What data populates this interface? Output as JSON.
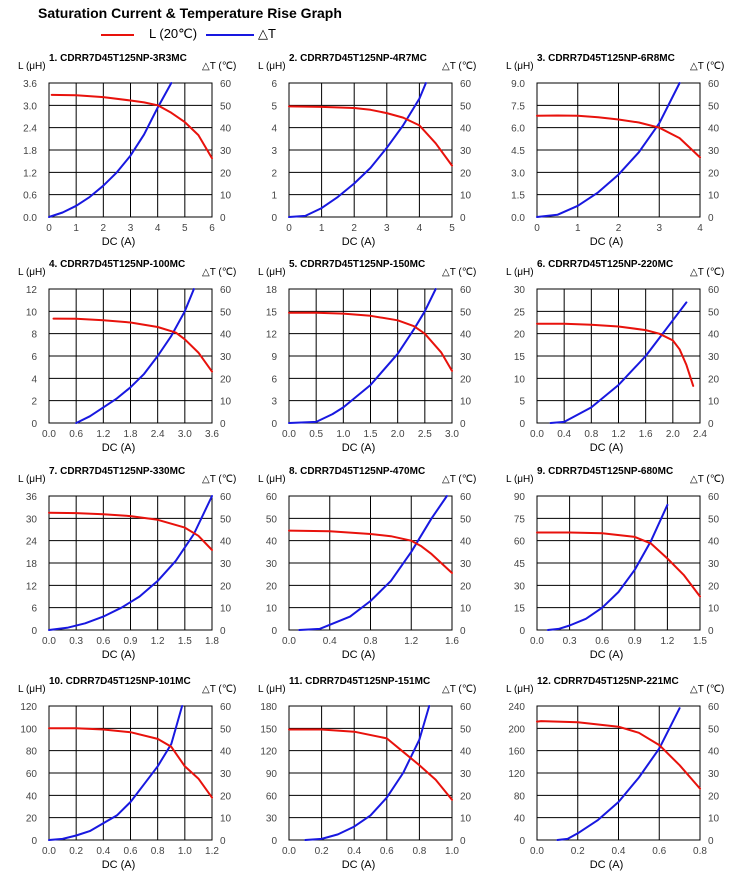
{
  "page": {
    "title": "Saturation Current & Temperature Rise  Graph",
    "legend": [
      {
        "label": "L (20℃)",
        "color": "#e8120c"
      },
      {
        "label": "△T",
        "color": "#1818e0"
      }
    ],
    "left_axis_label": "L (μH)",
    "right_axis_label": "△T (℃)",
    "x_axis_label": "DC (A)"
  },
  "chart_data": [
    {
      "type": "line",
      "title": "1. CDRR7D45T125NP-3R3MC",
      "xlabel": "DC (A)",
      "ylabel": "L (μH)",
      "y2label": "△T (℃)",
      "xlim": [
        0,
        6
      ],
      "ylim": [
        0,
        3.6
      ],
      "y2lim": [
        0,
        60
      ],
      "xticks": [
        "0",
        "1",
        "2",
        "3",
        "4",
        "5",
        "6"
      ],
      "yticks": [
        "0.0",
        "0.6",
        "1.2",
        "1.8",
        "2.4",
        "3.0",
        "3.6"
      ],
      "y2ticks": [
        "0",
        "10",
        "20",
        "30",
        "40",
        "50",
        "60"
      ],
      "grid": true,
      "series": [
        {
          "name": "L (20℃)",
          "axis": "left",
          "color": "#e8120c",
          "x": [
            0.1,
            1,
            2,
            3,
            3.5,
            4,
            4.5,
            5,
            5.5,
            6
          ],
          "y": [
            3.28,
            3.27,
            3.22,
            3.13,
            3.08,
            3.0,
            2.8,
            2.55,
            2.2,
            1.58
          ]
        },
        {
          "name": "△T",
          "axis": "right",
          "color": "#1818e0",
          "x": [
            0,
            0.5,
            1,
            1.5,
            2,
            2.5,
            3,
            3.5,
            4,
            4.5
          ],
          "y": [
            0,
            2,
            5,
            9,
            14,
            20,
            27.5,
            37,
            49,
            60
          ]
        }
      ]
    },
    {
      "type": "line",
      "title": "2. CDRR7D45T125NP-4R7MC",
      "xlabel": "DC (A)",
      "ylabel": "L (μH)",
      "y2label": "△T (℃)",
      "xlim": [
        0,
        5
      ],
      "ylim": [
        0,
        6
      ],
      "y2lim": [
        0,
        60
      ],
      "xticks": [
        "0",
        "1",
        "2",
        "3",
        "4",
        "5"
      ],
      "yticks": [
        "0",
        "1",
        "2",
        "3",
        "4",
        "5",
        "6"
      ],
      "y2ticks": [
        "0",
        "10",
        "20",
        "30",
        "40",
        "50",
        "60"
      ],
      "grid": true,
      "series": [
        {
          "name": "L (20℃)",
          "axis": "left",
          "color": "#e8120c",
          "x": [
            0,
            1,
            2,
            2.5,
            3,
            3.5,
            4,
            4.5,
            5
          ],
          "y": [
            4.95,
            4.93,
            4.88,
            4.8,
            4.65,
            4.45,
            4.1,
            3.3,
            2.3
          ]
        },
        {
          "name": "△T",
          "axis": "right",
          "color": "#1818e0",
          "x": [
            0,
            0.5,
            1,
            1.5,
            2,
            2.5,
            3,
            3.5,
            4,
            4.2
          ],
          "y": [
            0,
            0.5,
            4,
            9,
            15,
            22,
            31,
            41,
            53,
            60
          ]
        }
      ]
    },
    {
      "type": "line",
      "title": "3. CDRR7D45T125NP-6R8MC",
      "xlabel": "DC (A)",
      "ylabel": "L (μH)",
      "y2label": "△T (℃)",
      "xlim": [
        0,
        4
      ],
      "ylim": [
        0,
        9
      ],
      "y2lim": [
        0,
        60
      ],
      "xticks": [
        "0",
        "1",
        "2",
        "3",
        "4"
      ],
      "yticks": [
        "0.0",
        "1.5",
        "3.0",
        "4.5",
        "6.0",
        "7.5",
        "9.0"
      ],
      "y2ticks": [
        "0",
        "10",
        "20",
        "30",
        "40",
        "50",
        "60"
      ],
      "grid": true,
      "series": [
        {
          "name": "L (20℃)",
          "axis": "left",
          "color": "#e8120c",
          "x": [
            0,
            0.5,
            1,
            1.5,
            2,
            2.5,
            3,
            3.5,
            4
          ],
          "y": [
            6.8,
            6.82,
            6.8,
            6.7,
            6.55,
            6.35,
            6.0,
            5.3,
            4.0
          ]
        },
        {
          "name": "△T",
          "axis": "right",
          "color": "#1818e0",
          "x": [
            0,
            0.5,
            1,
            1.5,
            2,
            2.5,
            3,
            3.5
          ],
          "y": [
            0,
            1,
            5,
            11,
            19,
            29,
            42,
            60
          ]
        }
      ]
    },
    {
      "type": "line",
      "title": "4. CDRR7D45T125NP-100MC",
      "xlabel": "DC (A)",
      "ylabel": "L (μH)",
      "y2label": "△T (℃)",
      "xlim": [
        0,
        3.6
      ],
      "ylim": [
        0,
        12
      ],
      "y2lim": [
        0,
        60
      ],
      "xticks": [
        "0.0",
        "0.6",
        "1.2",
        "1.8",
        "2.4",
        "3.0",
        "3.6"
      ],
      "yticks": [
        "0",
        "2",
        "4",
        "6",
        "8",
        "10",
        "12"
      ],
      "y2ticks": [
        "0",
        "10",
        "20",
        "30",
        "40",
        "50",
        "60"
      ],
      "grid": true,
      "series": [
        {
          "name": "L (20℃)",
          "axis": "left",
          "color": "#e8120c",
          "x": [
            0.1,
            0.6,
            1.2,
            1.8,
            2.4,
            2.8,
            3.0,
            3.3,
            3.6
          ],
          "y": [
            9.35,
            9.33,
            9.2,
            9.0,
            8.6,
            8.1,
            7.5,
            6.3,
            4.6
          ]
        },
        {
          "name": "△T",
          "axis": "right",
          "color": "#1818e0",
          "x": [
            0.6,
            0.9,
            1.2,
            1.5,
            1.8,
            2.1,
            2.4,
            2.7,
            3.0,
            3.2
          ],
          "y": [
            0,
            3,
            7,
            11,
            16,
            22,
            30,
            39,
            50,
            60
          ]
        }
      ]
    },
    {
      "type": "line",
      "title": "5. CDRR7D45T125NP-150MC",
      "xlabel": "DC (A)",
      "ylabel": "L (μH)",
      "y2label": "△T (℃)",
      "xlim": [
        0,
        3
      ],
      "ylim": [
        0,
        18
      ],
      "y2lim": [
        0,
        60
      ],
      "xticks": [
        "0.0",
        "0.5",
        "1.0",
        "1.5",
        "2.0",
        "2.5",
        "3.0"
      ],
      "yticks": [
        "0",
        "3",
        "6",
        "9",
        "12",
        "15",
        "18"
      ],
      "y2ticks": [
        "0",
        "10",
        "20",
        "30",
        "40",
        "50",
        "60"
      ],
      "grid": true,
      "series": [
        {
          "name": "L (20℃)",
          "axis": "left",
          "color": "#e8120c",
          "x": [
            0,
            0.5,
            1,
            1.5,
            2,
            2.3,
            2.5,
            2.8,
            3
          ],
          "y": [
            14.8,
            14.8,
            14.7,
            14.4,
            13.8,
            13.0,
            12.0,
            9.5,
            7.0
          ]
        },
        {
          "name": "△T",
          "axis": "right",
          "color": "#1818e0",
          "x": [
            0,
            0.5,
            0.8,
            1.0,
            1.5,
            2.0,
            2.3,
            2.5,
            2.7
          ],
          "y": [
            0,
            0.5,
            4,
            7,
            17,
            31,
            42,
            50,
            60
          ]
        }
      ]
    },
    {
      "type": "line",
      "title": "6. CDRR7D45T125NP-220MC",
      "xlabel": "DC (A)",
      "ylabel": "L (μH)",
      "y2label": "△T (℃)",
      "xlim": [
        0,
        2.4
      ],
      "ylim": [
        0,
        30
      ],
      "y2lim": [
        0,
        60
      ],
      "xticks": [
        "0.0",
        "0.4",
        "0.8",
        "1.2",
        "1.6",
        "2.0",
        "2.4"
      ],
      "yticks": [
        "0",
        "5",
        "10",
        "15",
        "20",
        "25",
        "30"
      ],
      "y2ticks": [
        "0",
        "10",
        "20",
        "30",
        "40",
        "50",
        "60"
      ],
      "grid": true,
      "series": [
        {
          "name": "L (20℃)",
          "axis": "left",
          "color": "#e8120c",
          "x": [
            0,
            0.4,
            0.8,
            1.2,
            1.6,
            1.8,
            2.0,
            2.1,
            2.2,
            2.3
          ],
          "y": [
            22.2,
            22.2,
            22.0,
            21.6,
            20.8,
            20.0,
            18.5,
            16.5,
            13.0,
            8.3
          ]
        },
        {
          "name": "△T",
          "axis": "right",
          "color": "#1818e0",
          "x": [
            0.2,
            0.4,
            0.8,
            1.2,
            1.6,
            1.8,
            2.0,
            2.2
          ],
          "y": [
            0,
            0.5,
            7,
            17,
            30,
            38,
            46,
            54
          ]
        }
      ]
    },
    {
      "type": "line",
      "title": "7. CDRR7D45T125NP-330MC",
      "xlabel": "DC (A)",
      "ylabel": "L (μH)",
      "y2label": "△T (℃)",
      "xlim": [
        0,
        1.8
      ],
      "ylim": [
        0,
        36
      ],
      "y2lim": [
        0,
        60
      ],
      "xticks": [
        "0.0",
        "0.3",
        "0.6",
        "0.9",
        "1.2",
        "1.5",
        "1.8"
      ],
      "yticks": [
        "0",
        "6",
        "12",
        "18",
        "24",
        "30",
        "36"
      ],
      "y2ticks": [
        "0",
        "10",
        "20",
        "30",
        "40",
        "50",
        "60"
      ],
      "grid": true,
      "series": [
        {
          "name": "L (20℃)",
          "axis": "left",
          "color": "#e8120c",
          "x": [
            0,
            0.3,
            0.6,
            0.9,
            1.2,
            1.5,
            1.65,
            1.8
          ],
          "y": [
            31.5,
            31.4,
            31.1,
            30.6,
            29.6,
            27.5,
            25.3,
            21.5
          ]
        },
        {
          "name": "△T",
          "axis": "right",
          "color": "#1818e0",
          "x": [
            0,
            0.2,
            0.4,
            0.6,
            0.8,
            1.0,
            1.2,
            1.4,
            1.6,
            1.8
          ],
          "y": [
            0,
            1,
            3,
            6,
            10,
            15,
            22,
            31,
            43,
            60
          ]
        }
      ]
    },
    {
      "type": "line",
      "title": "8. CDRR7D45T125NP-470MC",
      "xlabel": "DC (A)",
      "ylabel": "L (μH)",
      "y2label": "△T (℃)",
      "xlim": [
        0,
        1.6
      ],
      "ylim": [
        0,
        60
      ],
      "y2lim": [
        0,
        60
      ],
      "xticks": [
        "0.0",
        "0.4",
        "0.8",
        "1.2",
        "1.6"
      ],
      "yticks": [
        "0",
        "10",
        "20",
        "30",
        "40",
        "50",
        "60"
      ],
      "y2ticks": [
        "0",
        "10",
        "20",
        "30",
        "40",
        "50",
        "60"
      ],
      "grid": true,
      "series": [
        {
          "name": "L (20℃)",
          "axis": "left",
          "color": "#e8120c",
          "x": [
            0,
            0.4,
            0.8,
            1.0,
            1.2,
            1.3,
            1.4,
            1.6
          ],
          "y": [
            44.5,
            44.2,
            43.0,
            42.0,
            40.0,
            37.5,
            34.0,
            25.5
          ]
        },
        {
          "name": "△T",
          "axis": "right",
          "color": "#1818e0",
          "x": [
            0.1,
            0.3,
            0.6,
            0.8,
            1.0,
            1.2,
            1.4,
            1.55
          ],
          "y": [
            0,
            0.5,
            6,
            13,
            22,
            35,
            50,
            60
          ]
        }
      ]
    },
    {
      "type": "line",
      "title": "9. CDRR7D45T125NP-680MC",
      "xlabel": "DC (A)",
      "ylabel": "L (μH)",
      "y2label": "△T (℃)",
      "xlim": [
        0,
        1.5
      ],
      "ylim": [
        0,
        90
      ],
      "y2lim": [
        0,
        60
      ],
      "xticks": [
        "0.0",
        "0.3",
        "0.6",
        "0.9",
        "1.2",
        "1.5"
      ],
      "yticks": [
        "0",
        "15",
        "30",
        "45",
        "60",
        "75",
        "90"
      ],
      "y2ticks": [
        "0",
        "10",
        "20",
        "30",
        "40",
        "50",
        "60"
      ],
      "grid": true,
      "series": [
        {
          "name": "L (20℃)",
          "axis": "left",
          "color": "#e8120c",
          "x": [
            0,
            0.3,
            0.6,
            0.9,
            1.05,
            1.2,
            1.35,
            1.5
          ],
          "y": [
            65.5,
            65.5,
            65.0,
            62.5,
            58.0,
            48.0,
            37.0,
            22.5
          ]
        },
        {
          "name": "△T",
          "axis": "right",
          "color": "#1818e0",
          "x": [
            0.1,
            0.2,
            0.3,
            0.45,
            0.6,
            0.75,
            0.9,
            1.05,
            1.2
          ],
          "y": [
            0,
            0.5,
            2,
            5,
            10,
            17,
            27,
            40,
            56
          ]
        }
      ]
    },
    {
      "type": "line",
      "title": "10. CDRR7D45T125NP-101MC",
      "xlabel": "DC (A)",
      "ylabel": "L (μH)",
      "y2label": "△T (℃)",
      "xlim": [
        0,
        1.2
      ],
      "ylim": [
        0,
        120
      ],
      "y2lim": [
        0,
        60
      ],
      "xticks": [
        "0.0",
        "0.2",
        "0.4",
        "0.6",
        "0.8",
        "1.0",
        "1.2"
      ],
      "yticks": [
        "0",
        "20",
        "40",
        "60",
        "80",
        "100",
        "120"
      ],
      "y2ticks": [
        "0",
        "10",
        "20",
        "30",
        "40",
        "50",
        "60"
      ],
      "grid": true,
      "series": [
        {
          "name": "L (20℃)",
          "axis": "left",
          "color": "#e8120c",
          "x": [
            0,
            0.2,
            0.4,
            0.6,
            0.8,
            0.9,
            1.0,
            1.1,
            1.2
          ],
          "y": [
            100,
            100,
            99,
            96.5,
            90.5,
            83.5,
            66.0,
            55.0,
            38.0
          ]
        },
        {
          "name": "△T",
          "axis": "right",
          "color": "#1818e0",
          "x": [
            0,
            0.1,
            0.2,
            0.3,
            0.4,
            0.5,
            0.6,
            0.7,
            0.8,
            0.9,
            0.98
          ],
          "y": [
            0,
            0.5,
            2,
            4,
            7.5,
            11,
            17,
            25,
            33,
            43,
            60
          ]
        }
      ]
    },
    {
      "type": "line",
      "title": "11. CDRR7D45T125NP-151MC",
      "xlabel": "DC (A)",
      "ylabel": "L (μH)",
      "y2label": "△T (℃)",
      "xlim": [
        0,
        1
      ],
      "ylim": [
        0,
        180
      ],
      "y2lim": [
        0,
        60
      ],
      "xticks": [
        "0.0",
        "0.2",
        "0.4",
        "0.6",
        "0.8",
        "1.0"
      ],
      "yticks": [
        "0",
        "30",
        "60",
        "90",
        "120",
        "150",
        "180"
      ],
      "y2ticks": [
        "0",
        "10",
        "20",
        "30",
        "40",
        "50",
        "60"
      ],
      "grid": true,
      "series": [
        {
          "name": "L (20℃)",
          "axis": "left",
          "color": "#e8120c",
          "x": [
            0,
            0.2,
            0.4,
            0.6,
            0.7,
            0.8,
            0.9,
            1.0
          ],
          "y": [
            148.5,
            148.5,
            145.5,
            136.5,
            118.5,
            100.5,
            81.0,
            54.0
          ]
        },
        {
          "name": "△T",
          "axis": "right",
          "color": "#1818e0",
          "x": [
            0.1,
            0.2,
            0.3,
            0.4,
            0.5,
            0.6,
            0.7,
            0.8,
            0.86
          ],
          "y": [
            0,
            0.5,
            2.5,
            6,
            11,
            19,
            30,
            45,
            60
          ]
        }
      ]
    },
    {
      "type": "line",
      "title": "12. CDRR7D45T125NP-221MC",
      "xlabel": "DC (A)",
      "ylabel": "L (μH)",
      "y2label": "△T (℃)",
      "xlim": [
        0,
        0.8
      ],
      "ylim": [
        0,
        240
      ],
      "y2lim": [
        0,
        60
      ],
      "xticks": [
        "0.0",
        "0.2",
        "0.4",
        "0.6",
        "0.8"
      ],
      "yticks": [
        "0",
        "40",
        "80",
        "120",
        "160",
        "200",
        "240"
      ],
      "y2ticks": [
        "0",
        "10",
        "20",
        "30",
        "40",
        "50",
        "60"
      ],
      "grid": true,
      "series": [
        {
          "name": "L (20℃)",
          "axis": "left",
          "color": "#e8120c",
          "x": [
            0,
            0.02,
            0.2,
            0.4,
            0.5,
            0.6,
            0.7,
            0.8
          ],
          "y": [
            212,
            213,
            211,
            203,
            192,
            170,
            134,
            92
          ]
        },
        {
          "name": "△T",
          "axis": "right",
          "color": "#1818e0",
          "x": [
            0.1,
            0.15,
            0.2,
            0.3,
            0.4,
            0.5,
            0.6,
            0.7
          ],
          "y": [
            0,
            0.5,
            3,
            9,
            17,
            28,
            41,
            59
          ]
        }
      ]
    }
  ]
}
